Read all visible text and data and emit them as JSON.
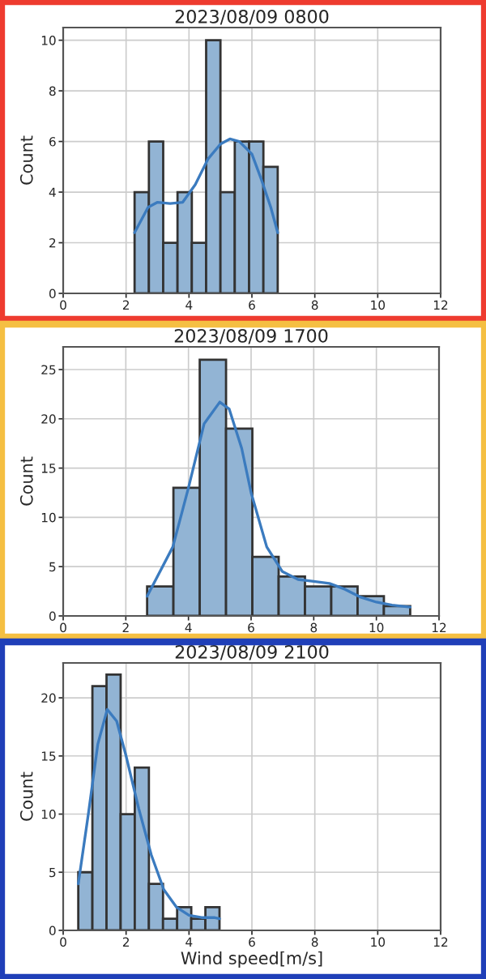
{
  "chart_data": [
    {
      "type": "histogram",
      "title": "2023/08/09 0800",
      "ylabel": "Count",
      "xlim": [
        0,
        12
      ],
      "xticks": [
        0,
        2,
        4,
        6,
        8,
        10,
        12
      ],
      "ylim": [
        0,
        10.5
      ],
      "yticks": [
        0,
        2,
        4,
        6,
        8,
        10
      ],
      "grid": true,
      "series": [
        {
          "type": "histogram",
          "color": "#92b4d4",
          "bins": [
            2.27,
            2.725,
            3.18,
            3.635,
            4.09,
            4.545,
            5.0,
            5.455,
            5.91,
            6.365,
            6.82
          ],
          "values": [
            4,
            6,
            2,
            4,
            2,
            10,
            4,
            6,
            6,
            5
          ]
        },
        {
          "type": "line",
          "color": "#3b7bbf",
          "x": [
            2.27,
            2.7,
            3.0,
            3.4,
            3.8,
            4.2,
            4.6,
            5.0,
            5.3,
            5.6,
            6.0,
            6.3,
            6.6,
            6.82
          ],
          "values": [
            2.4,
            3.4,
            3.6,
            3.55,
            3.6,
            4.3,
            5.3,
            5.9,
            6.1,
            6.0,
            5.5,
            4.5,
            3.4,
            2.4
          ]
        }
      ]
    },
    {
      "type": "histogram",
      "title": "2023/08/09 1700",
      "ylabel": "Count",
      "xlim": [
        0,
        12
      ],
      "xticks": [
        0,
        2,
        4,
        6,
        8,
        10,
        12
      ],
      "ylim": [
        0,
        27.3
      ],
      "yticks": [
        0,
        5,
        10,
        15,
        20,
        25
      ],
      "grid": true,
      "series": [
        {
          "type": "histogram",
          "color": "#92b4d4",
          "bins": [
            2.68,
            3.52,
            4.36,
            5.2,
            6.04,
            6.88,
            7.72,
            8.56,
            9.4,
            10.24,
            11.08
          ],
          "values": [
            3,
            13,
            26,
            19,
            6,
            4,
            3,
            3,
            2,
            1
          ]
        },
        {
          "type": "line",
          "color": "#3b7bbf",
          "x": [
            2.68,
            3.5,
            4.0,
            4.5,
            5.0,
            5.3,
            5.7,
            6.0,
            6.5,
            7.0,
            7.5,
            8.0,
            8.5,
            9.0,
            9.5,
            10.0,
            10.5,
            11.08
          ],
          "values": [
            2.0,
            7,
            13,
            19.5,
            21.7,
            21,
            17,
            12.5,
            7,
            4.5,
            3.7,
            3.5,
            3.3,
            2.7,
            1.9,
            1.4,
            1.1,
            0.9
          ]
        }
      ]
    },
    {
      "type": "histogram",
      "title": "2023/08/09 2100",
      "xlabel": "Wind speed[m/s]",
      "ylabel": "Count",
      "xlim": [
        0,
        12
      ],
      "xticks": [
        0,
        2,
        4,
        6,
        8,
        10,
        12
      ],
      "ylim": [
        0,
        23
      ],
      "yticks": [
        0,
        5,
        10,
        15,
        20
      ],
      "grid": true,
      "series": [
        {
          "type": "histogram",
          "color": "#92b4d4",
          "bins": [
            0.48,
            0.929,
            1.378,
            1.827,
            2.276,
            2.725,
            3.174,
            3.623,
            4.072,
            4.521,
            4.97
          ],
          "values": [
            5,
            21,
            22,
            10,
            14,
            4,
            1,
            2,
            1,
            2
          ]
        },
        {
          "type": "line",
          "color": "#3b7bbf",
          "x": [
            0.48,
            0.8,
            1.1,
            1.4,
            1.7,
            2.0,
            2.4,
            2.8,
            3.2,
            3.6,
            4.0,
            4.4,
            4.8,
            4.97
          ],
          "values": [
            4,
            10,
            16,
            19,
            18,
            15,
            10.5,
            6.5,
            3.5,
            2,
            1.3,
            1.1,
            1.1,
            1.0
          ]
        }
      ]
    }
  ]
}
